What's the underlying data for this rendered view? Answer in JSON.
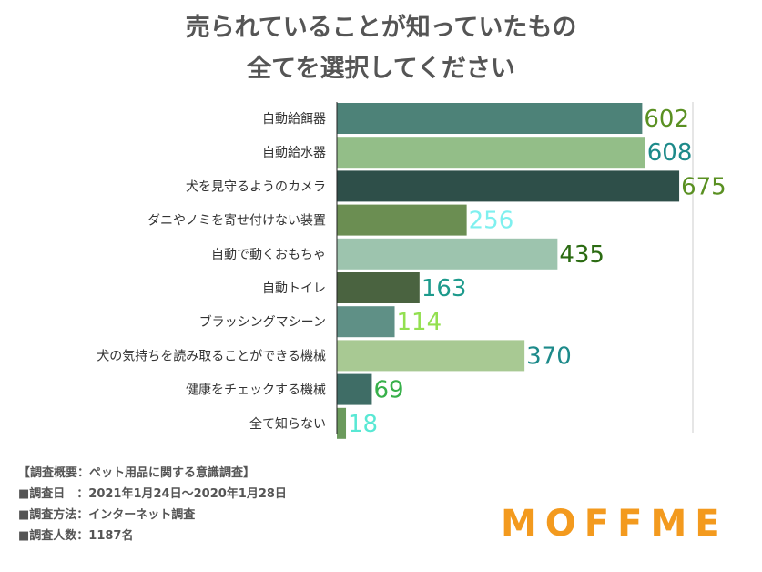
{
  "title_line1": "売られていることが知っていたもの",
  "title_line2": "全てを選択してください",
  "chart_data": {
    "type": "bar",
    "orientation": "horizontal",
    "categories": [
      "自動給餌器",
      "自動給水器",
      "犬を見守るようのカメラ",
      "ダニやノミを寄せ付けない装置",
      "自動で動くおもちゃ",
      "自動トイレ",
      "ブラッシングマシーン",
      "犬の気持ちを読み取ることができる機械",
      "健康をチェックする機械",
      "全て知らない"
    ],
    "values": [
      602,
      608,
      675,
      256,
      435,
      163,
      114,
      370,
      69,
      18
    ],
    "bar_colors": [
      "#4d8278",
      "#93be88",
      "#2e4f49",
      "#6b8e52",
      "#9dc4ae",
      "#4a6340",
      "#5f9086",
      "#a8c993",
      "#3f6d66",
      "#6b9a5c"
    ],
    "value_label_colors": [
      "#5a9022",
      "#1d8a8a",
      "#5a9022",
      "#7ff0ef",
      "#2b6b12",
      "#1d9a8c",
      "#93e050",
      "#1d8a8a",
      "#37b04a",
      "#59e8d4"
    ],
    "xlim": [
      0,
      700
    ],
    "grid": false
  },
  "survey": {
    "heading": "【調査概要：ペット用品に関する意識調査】",
    "date": "■調査日　：2021年1月24日〜2020年1月28日",
    "method": "■調査方法：インターネット調査",
    "count": "■調査人数：1187名"
  },
  "logo": {
    "text": "MOFFME",
    "color": "#f39a1e"
  }
}
